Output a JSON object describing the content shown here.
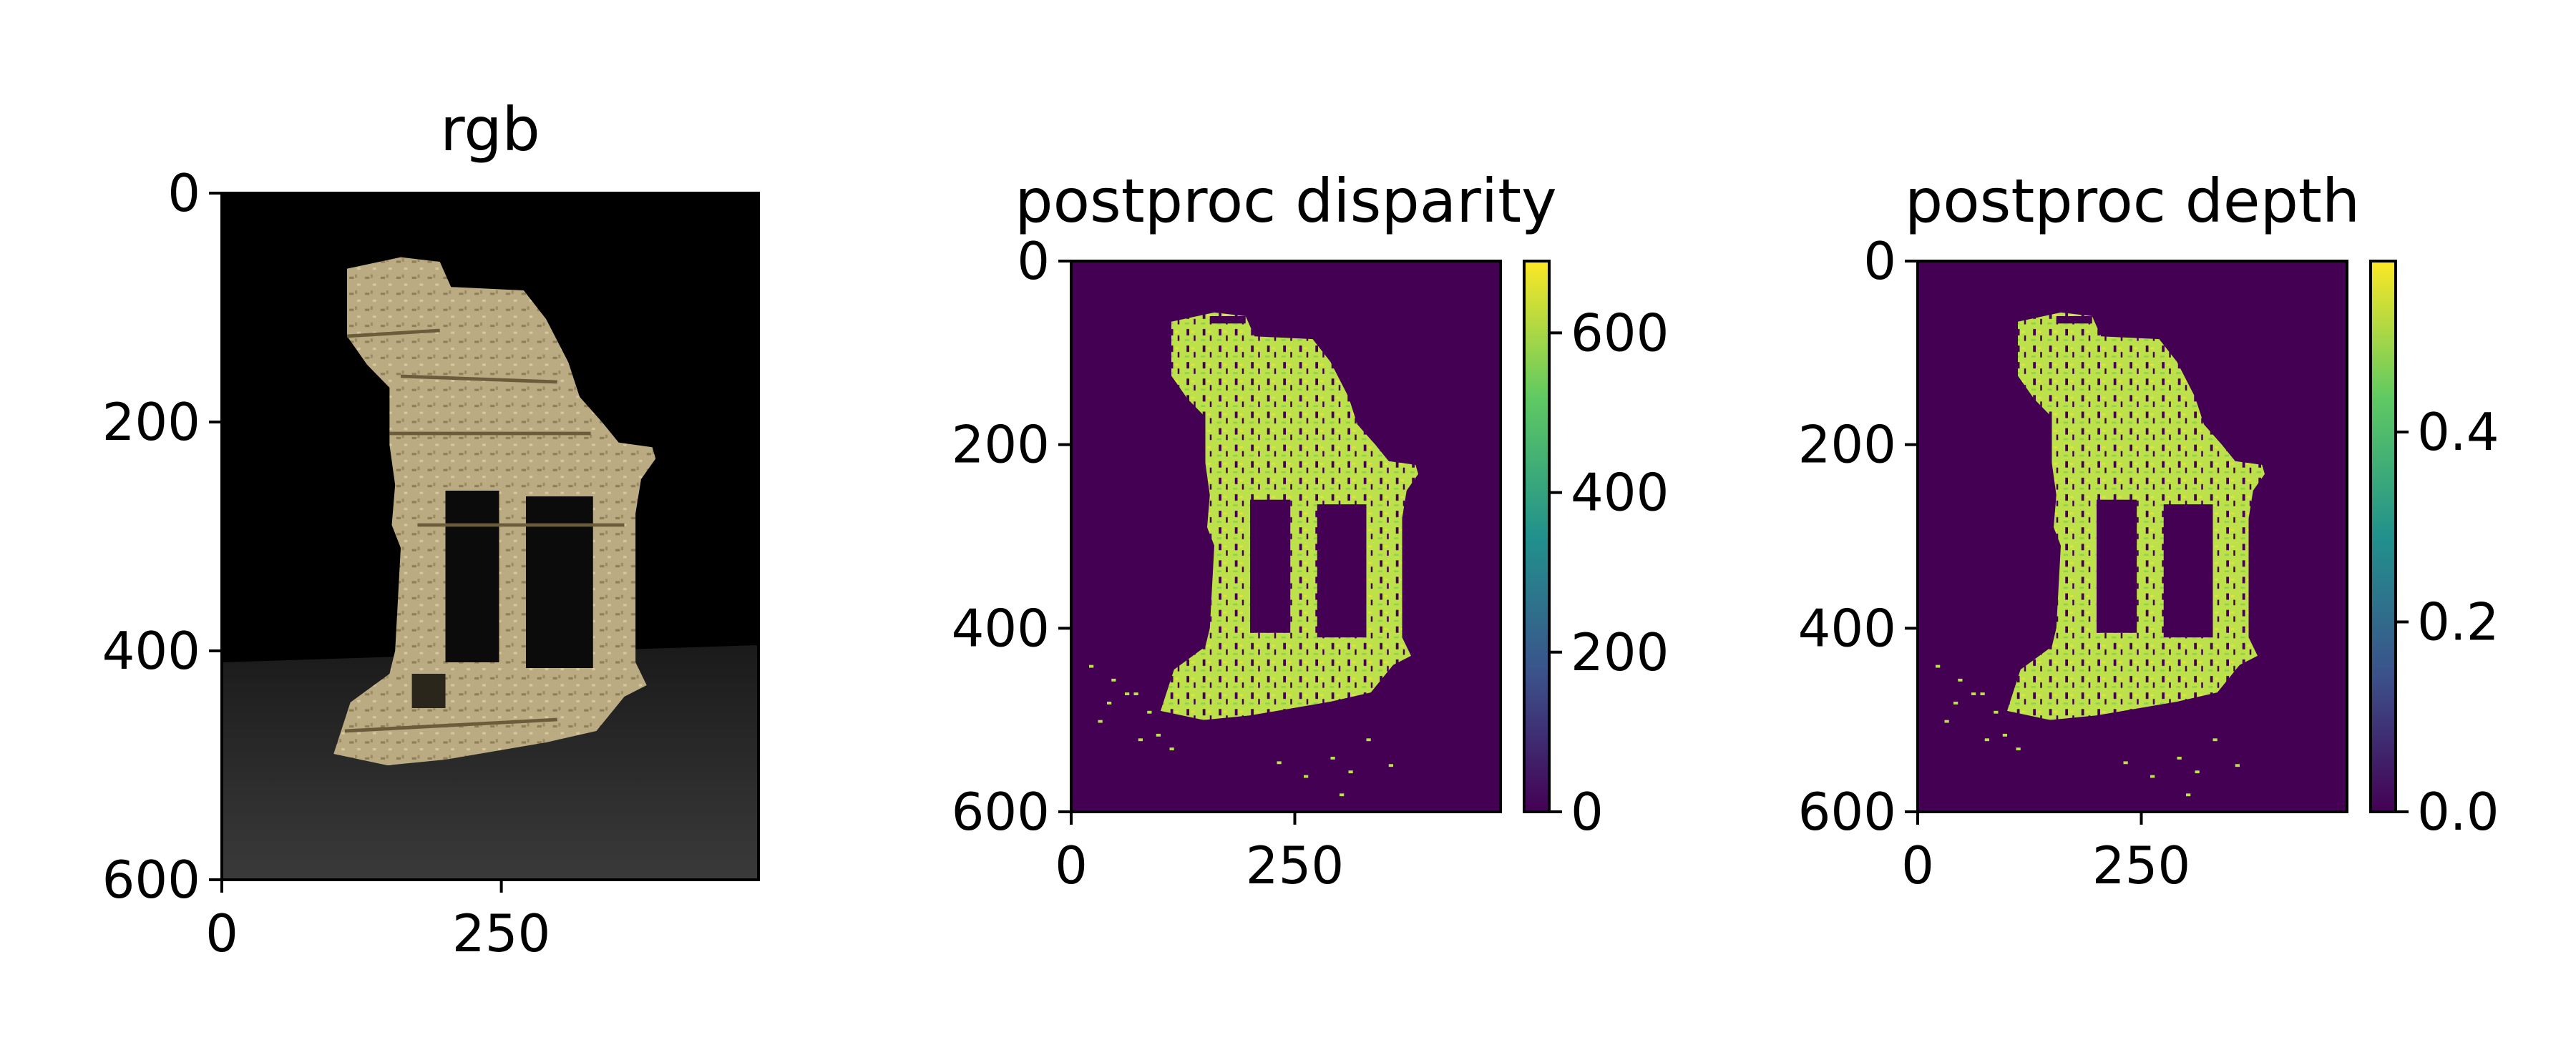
{
  "chart_data": [
    {
      "type": "image",
      "title": "rgb",
      "xticks": [
        0,
        250
      ],
      "yticks": [
        0,
        200,
        400,
        600
      ],
      "xlim": [
        0,
        480
      ],
      "ylim": [
        600,
        0
      ]
    },
    {
      "type": "heatmap",
      "title": "postproc disparity",
      "xticks": [
        0,
        250
      ],
      "yticks": [
        0,
        200,
        400,
        600
      ],
      "xlim": [
        0,
        480
      ],
      "ylim": [
        600,
        0
      ],
      "colormap": "viridis",
      "colorbar": {
        "min": 0,
        "max": 690,
        "ticks": [
          0,
          200,
          400,
          600
        ]
      }
    },
    {
      "type": "heatmap",
      "title": "postproc depth",
      "xticks": [
        0,
        250
      ],
      "yticks": [
        0,
        200,
        400,
        600
      ],
      "xlim": [
        0,
        480
      ],
      "ylim": [
        600,
        0
      ],
      "colormap": "viridis",
      "colorbar": {
        "min": 0.0,
        "max": 0.58,
        "ticks": [
          "0.0",
          "0.2",
          "0.4"
        ]
      }
    }
  ],
  "colors": {
    "background": "#000000",
    "stone": "#b5a47c",
    "viridis_low": "#440154",
    "viridis_high": "#fde725",
    "viridis_fg": "#bde14a"
  },
  "icons": {
    "temple": "ruined-temple-picture"
  }
}
